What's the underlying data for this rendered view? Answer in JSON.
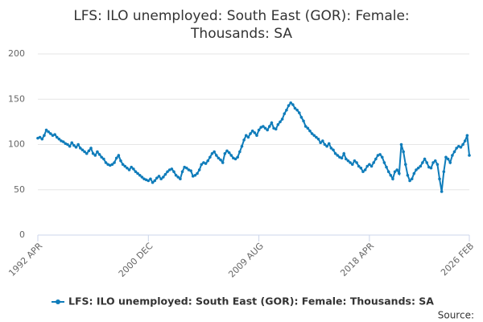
{
  "chart_data": {
    "type": "line",
    "title": "LFS: ILO unemployed: South East (GOR): Female: Thousands: SA",
    "source": "Source:",
    "categories": [
      "1992 APR",
      null,
      null,
      null,
      null,
      null,
      null,
      null,
      null,
      null,
      null,
      null,
      null,
      null,
      null,
      null,
      null,
      null,
      null,
      null,
      null,
      null,
      null,
      null,
      null,
      null,
      null,
      null,
      null,
      null,
      null,
      null,
      null,
      null,
      null,
      null,
      null,
      null,
      null,
      null,
      null,
      null,
      null,
      null,
      null,
      null,
      null,
      null,
      null,
      null,
      null,
      null,
      "2000 DEC",
      null,
      null,
      null,
      null,
      null,
      null,
      null,
      null,
      null,
      null,
      null,
      null,
      null,
      null,
      null,
      null,
      null,
      null,
      null,
      null,
      null,
      null,
      null,
      null,
      null,
      null,
      null,
      null,
      null,
      null,
      null,
      null,
      null,
      null,
      null,
      null,
      null,
      null,
      null,
      null,
      null,
      null,
      null,
      null,
      null,
      null,
      null,
      null,
      null,
      null,
      null,
      "2009 AUG",
      null,
      null,
      null,
      null,
      null,
      null,
      null,
      null,
      null,
      null,
      null,
      null,
      null,
      null,
      null,
      null,
      null,
      null,
      null,
      null,
      null,
      null,
      null,
      null,
      null,
      null,
      null,
      null,
      null,
      null,
      null,
      null,
      null,
      null,
      null,
      null,
      null,
      null,
      null,
      null,
      null,
      null,
      null,
      null,
      null,
      null,
      null,
      null,
      null,
      null,
      null,
      "2018 APR",
      null,
      null,
      null,
      null,
      null,
      null,
      null,
      null,
      null,
      null,
      null,
      null,
      null,
      null,
      null,
      null,
      null,
      null,
      null,
      null,
      null,
      null,
      null,
      null,
      null,
      null,
      null,
      null,
      null,
      null,
      null,
      null,
      null,
      null,
      null,
      null,
      null,
      null,
      null,
      null,
      null,
      null,
      null,
      null,
      null,
      null,
      "2026 FEB"
    ],
    "series": [
      {
        "name": "LFS: ILO unemployed: South East (GOR): Female: Thousands: SA",
        "color": "#0f7cba",
        "values": [
          107,
          108,
          106,
          110,
          116,
          114,
          112,
          110,
          111,
          108,
          106,
          104,
          103,
          101,
          100,
          98,
          102,
          99,
          97,
          100,
          96,
          94,
          92,
          90,
          93,
          96,
          90,
          88,
          92,
          89,
          86,
          84,
          80,
          78,
          77,
          78,
          80,
          85,
          88,
          82,
          78,
          76,
          74,
          72,
          75,
          73,
          70,
          68,
          66,
          64,
          62,
          61,
          60,
          62,
          58,
          60,
          63,
          65,
          62,
          64,
          67,
          70,
          72,
          73,
          70,
          66,
          64,
          62,
          70,
          75,
          74,
          72,
          71,
          65,
          66,
          68,
          72,
          78,
          80,
          79,
          82,
          86,
          90,
          92,
          88,
          85,
          83,
          80,
          90,
          93,
          91,
          88,
          85,
          84,
          86,
          92,
          98,
          105,
          110,
          108,
          112,
          115,
          113,
          110,
          116,
          119,
          120,
          118,
          116,
          120,
          124,
          118,
          117,
          122,
          125,
          128,
          134,
          138,
          143,
          146,
          144,
          140,
          138,
          135,
          130,
          126,
          120,
          118,
          115,
          112,
          110,
          108,
          106,
          102,
          104,
          100,
          98,
          101,
          96,
          94,
          90,
          88,
          86,
          85,
          90,
          84,
          82,
          80,
          78,
          82,
          80,
          76,
          74,
          70,
          72,
          76,
          78,
          76,
          80,
          84,
          88,
          89,
          86,
          80,
          75,
          70,
          66,
          62,
          70,
          72,
          68,
          100,
          92,
          78,
          66,
          60,
          62,
          68,
          72,
          74,
          76,
          80,
          84,
          80,
          75,
          74,
          80,
          82,
          78,
          62,
          48,
          70,
          86,
          84,
          80,
          88,
          92,
          96,
          98,
          97,
          100,
          104,
          110,
          88
        ]
      }
    ],
    "ylim": [
      0,
      200
    ],
    "yticks": [
      0,
      50,
      100,
      150,
      200
    ],
    "grid": true
  }
}
